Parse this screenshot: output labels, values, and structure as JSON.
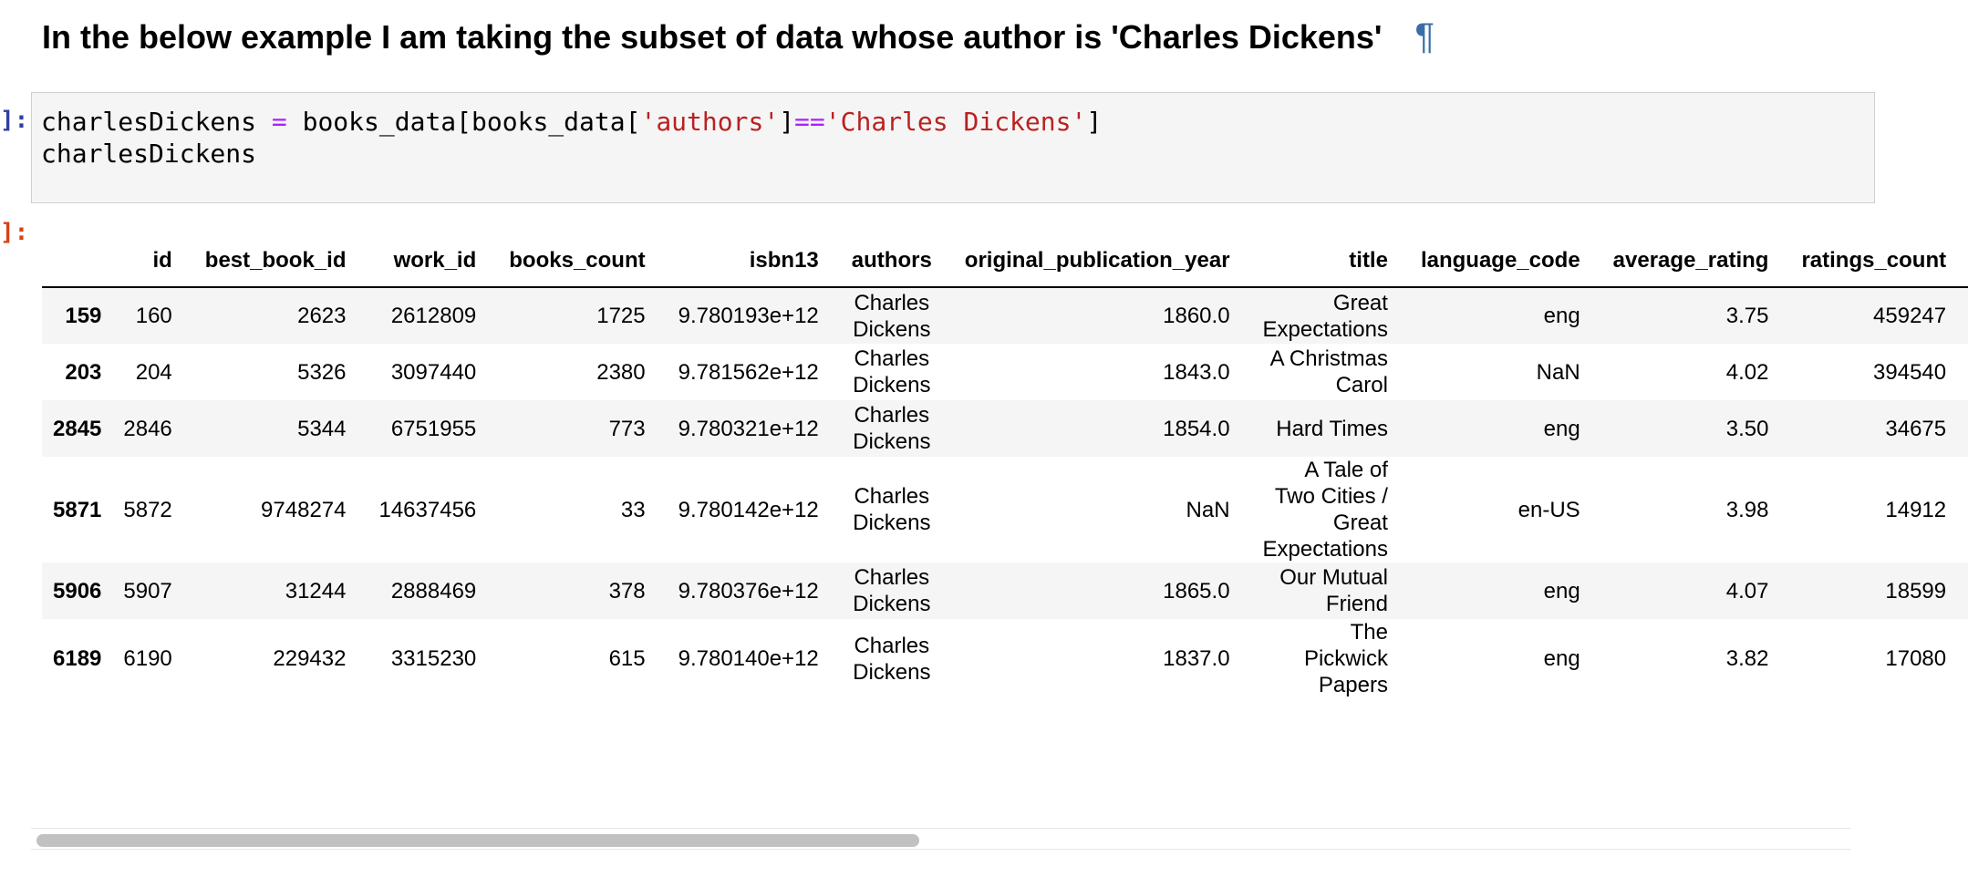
{
  "markdown": {
    "heading": "In the below example I am taking the subset of data whose author is 'Charles Dickens'",
    "anchor_symbol": "¶"
  },
  "code_cell": {
    "prompt": "]:",
    "line1": {
      "var": "charlesDickens ",
      "eq": "=",
      "part1": " books_data[books_data[",
      "str1": "'authors'",
      "part2": "]",
      "op": "==",
      "str2": "'Charles Dickens'",
      "part3": "]"
    },
    "line2": "charlesDickens"
  },
  "output": {
    "prompt": "]:",
    "columns": [
      "",
      "id",
      "best_book_id",
      "work_id",
      "books_count",
      "isbn13",
      "authors",
      "original_publication_year",
      "title",
      "language_code",
      "average_rating",
      "ratings_count"
    ],
    "rows": [
      {
        "index": "159",
        "id": "160",
        "best_book_id": "2623",
        "work_id": "2612809",
        "books_count": "1725",
        "isbn13": "9.780193e+12",
        "authors": "Charles Dickens",
        "original_publication_year": "1860.0",
        "title": "Great Expectations",
        "language_code": "eng",
        "average_rating": "3.75",
        "ratings_count": "459247"
      },
      {
        "index": "203",
        "id": "204",
        "best_book_id": "5326",
        "work_id": "3097440",
        "books_count": "2380",
        "isbn13": "9.781562e+12",
        "authors": "Charles Dickens",
        "original_publication_year": "1843.0",
        "title": "A Christmas Carol",
        "language_code": "NaN",
        "average_rating": "4.02",
        "ratings_count": "394540"
      },
      {
        "index": "2845",
        "id": "2846",
        "best_book_id": "5344",
        "work_id": "6751955",
        "books_count": "773",
        "isbn13": "9.780321e+12",
        "authors": "Charles Dickens",
        "original_publication_year": "1854.0",
        "title": "Hard Times",
        "language_code": "eng",
        "average_rating": "3.50",
        "ratings_count": "34675"
      },
      {
        "index": "5871",
        "id": "5872",
        "best_book_id": "9748274",
        "work_id": "14637456",
        "books_count": "33",
        "isbn13": "9.780142e+12",
        "authors": "Charles Dickens",
        "original_publication_year": "NaN",
        "title": "A Tale of Two Cities / Great Expectations",
        "language_code": "en-US",
        "average_rating": "3.98",
        "ratings_count": "14912"
      },
      {
        "index": "5906",
        "id": "5907",
        "best_book_id": "31244",
        "work_id": "2888469",
        "books_count": "378",
        "isbn13": "9.780376e+12",
        "authors": "Charles Dickens",
        "original_publication_year": "1865.0",
        "title": "Our Mutual Friend",
        "language_code": "eng",
        "average_rating": "4.07",
        "ratings_count": "18599"
      },
      {
        "index": "6189",
        "id": "6190",
        "best_book_id": "229432",
        "work_id": "3315230",
        "books_count": "615",
        "isbn13": "9.780140e+12",
        "authors": "Charles Dickens",
        "original_publication_year": "1837.0",
        "title": "The Pickwick Papers",
        "language_code": "eng",
        "average_rating": "3.82",
        "ratings_count": "17080"
      }
    ]
  }
}
